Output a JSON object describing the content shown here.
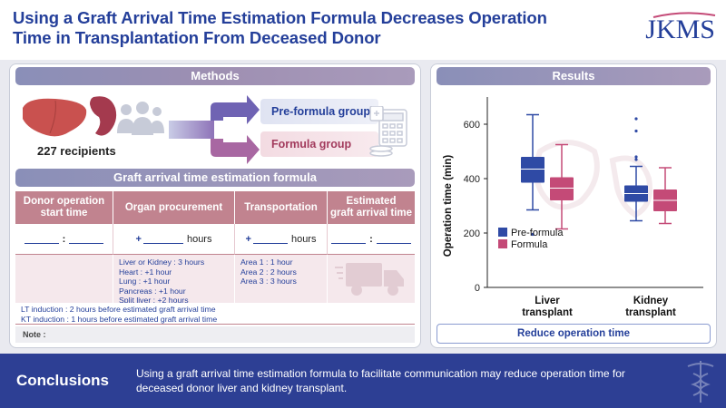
{
  "header": {
    "title_line1": "Using a Graft Arrival Time Estimation Formula Decreases Operation",
    "title_line2": "Time in Transplantation From Deceased Donor",
    "logo": "JKMS"
  },
  "methods": {
    "label": "Methods",
    "recipients": "227 recipients",
    "pre_group": "Pre-formula group",
    "formula_group": "Formula group",
    "formula_title": "Graft arrival time estimation formula",
    "columns": [
      "Donor operation start time",
      "Organ procurement",
      "Transportation",
      "Estimated graft arrival time"
    ],
    "col_head": {
      "c0a": "Donor operation",
      "c0b": "start time",
      "c1": "Organ procurement",
      "c2": "Transportation",
      "c3a": "Estimated",
      "c3b": "graft arrival time"
    },
    "row2": {
      "colon": ":",
      "plus": "+",
      "hours": "hours"
    },
    "procurement": [
      "Liver or Kidney  : 3 hours",
      "Heart : +1 hour",
      "Lung : +1 hour",
      "Pancreas : +1 hour",
      "Split liver : +2 hours"
    ],
    "transportation": [
      "Area 1 : 1 hour",
      "Area 2 : 2 hours",
      "Area 3 : 3 hours"
    ],
    "induction": [
      "LT induction : 2 hours before estimated graft arrival time",
      "KT induction : 1 hours before estimated graft arrival time"
    ],
    "note": "Note :"
  },
  "results": {
    "label": "Results",
    "footer": "Reduce operation time"
  },
  "chart_data": {
    "type": "boxplot",
    "ylabel": "Operation time (min)",
    "ylim": [
      0,
      700
    ],
    "yticks": [
      0,
      200,
      400,
      600
    ],
    "categories": [
      "Liver transplant",
      "Kidney transplant"
    ],
    "category_labels": [
      [
        "Liver",
        "transplant"
      ],
      [
        "Kidney",
        "transplant"
      ]
    ],
    "series": [
      {
        "name": "Pre-formula",
        "color": "#2f4aa5",
        "boxes": [
          {
            "min": 285,
            "q1": 385,
            "median": 435,
            "q3": 480,
            "max": 635,
            "outliers": [
              195
            ]
          },
          {
            "min": 245,
            "q1": 315,
            "median": 345,
            "q3": 375,
            "max": 445,
            "outliers": [
              470,
              480,
              575,
              620
            ]
          }
        ]
      },
      {
        "name": "Formula",
        "color": "#c44a77",
        "boxes": [
          {
            "min": 215,
            "q1": 320,
            "median": 365,
            "q3": 405,
            "max": 525,
            "outliers": []
          },
          {
            "min": 235,
            "q1": 280,
            "median": 320,
            "q3": 360,
            "max": 440,
            "outliers": []
          }
        ]
      }
    ]
  },
  "conclusions": {
    "label": "Conclusions",
    "text": "Using a graft arrival time estimation formula to facilitate communication may reduce operation time for deceased donor liver and kidney transplant."
  }
}
